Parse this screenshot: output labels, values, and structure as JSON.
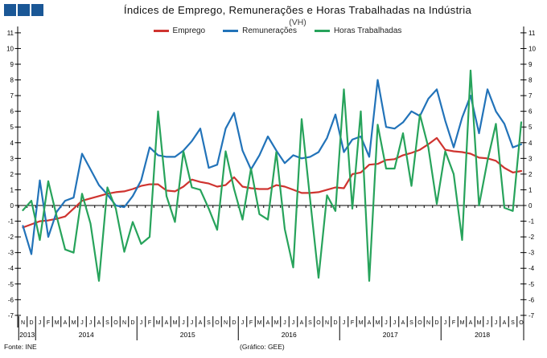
{
  "logo": {
    "square_count": 3,
    "color": "#1A5796"
  },
  "header": {
    "title": "Índices de Emprego,  Remunerações e Horas Trabalhadas  na  Indústria",
    "subtitle": "(VH)"
  },
  "footer": {
    "source": "Fonte:  INE",
    "credit": "(Gráfico:  GEE)"
  },
  "chart_data": {
    "type": "line",
    "title": "Índices de Emprego, Remunerações e Horas Trabalhadas na Indústria",
    "subtitle": "(VH)",
    "ylim": [
      -7,
      11
    ],
    "y_step": 1,
    "grid": false,
    "legend_position": "top-center",
    "dual_y_axis": true,
    "x_month_labels": [
      "N",
      "D",
      "J",
      "F",
      "M",
      "A",
      "M",
      "J",
      "J",
      "A",
      "S",
      "O",
      "N",
      "D",
      "J",
      "F",
      "M",
      "A",
      "M",
      "J",
      "J",
      "A",
      "S",
      "O",
      "N",
      "D",
      "J",
      "F",
      "M",
      "A",
      "M",
      "J",
      "J",
      "A",
      "S",
      "O",
      "N",
      "D",
      "J",
      "F",
      "M",
      "A",
      "M",
      "J",
      "J",
      "A",
      "S",
      "O",
      "N",
      "D",
      "J",
      "F",
      "M",
      "A",
      "M",
      "J",
      "J",
      "A",
      "S",
      "O"
    ],
    "years": [
      {
        "label": "2013",
        "from": 0,
        "to": 1
      },
      {
        "label": "2014",
        "from": 2,
        "to": 13
      },
      {
        "label": "2015",
        "from": 14,
        "to": 25
      },
      {
        "label": "2016",
        "from": 26,
        "to": 37
      },
      {
        "label": "2017",
        "from": 38,
        "to": 49
      },
      {
        "label": "2018",
        "from": 50,
        "to": 59
      }
    ],
    "series": [
      {
        "name": "Emprego",
        "color": "#CF3430",
        "values": [
          -1.4,
          -1.2,
          -1.0,
          -0.95,
          -0.85,
          -0.7,
          -0.2,
          0.3,
          0.45,
          0.6,
          0.75,
          0.85,
          0.9,
          1.05,
          1.25,
          1.35,
          1.35,
          0.95,
          0.9,
          1.2,
          1.65,
          1.5,
          1.4,
          1.2,
          1.3,
          1.8,
          1.2,
          1.1,
          1.05,
          1.05,
          1.3,
          1.2,
          1.0,
          0.8,
          0.8,
          0.85,
          1.0,
          1.15,
          1.1,
          2.0,
          2.1,
          2.6,
          2.65,
          2.9,
          2.95,
          3.2,
          3.35,
          3.55,
          3.9,
          4.3,
          3.55,
          3.45,
          3.4,
          3.3,
          3.05,
          3.0,
          2.85,
          2.4,
          2.1,
          2.2
        ]
      },
      {
        "name": "Remunerações",
        "color": "#2273B9",
        "values": [
          -1.3,
          -3.1,
          1.6,
          -2.0,
          -0.4,
          0.3,
          0.5,
          3.3,
          2.3,
          1.3,
          0.7,
          0.0,
          -0.1,
          0.6,
          1.6,
          3.7,
          3.2,
          3.1,
          3.1,
          3.5,
          4.1,
          4.9,
          2.4,
          2.6,
          4.9,
          5.9,
          3.5,
          2.3,
          3.2,
          4.4,
          3.5,
          2.7,
          3.2,
          3.0,
          3.1,
          3.4,
          4.3,
          5.8,
          3.4,
          4.2,
          4.4,
          3.1,
          8.0,
          5.0,
          4.9,
          5.3,
          6.0,
          5.7,
          6.8,
          7.4,
          5.4,
          3.7,
          5.6,
          7.0,
          4.6,
          7.4,
          6.0,
          5.2,
          3.7,
          3.9
        ]
      },
      {
        "name": "Horas Trabalhadas",
        "color": "#27A35B",
        "values": [
          -0.3,
          0.3,
          -2.2,
          1.55,
          -0.7,
          -2.8,
          -3.0,
          0.75,
          -1.15,
          -4.8,
          1.15,
          -0.2,
          -2.95,
          -1.05,
          -2.45,
          -2.0,
          6.0,
          0.6,
          -1.05,
          3.45,
          1.15,
          1.0,
          -0.2,
          -1.55,
          3.45,
          1.05,
          -0.9,
          2.35,
          -0.55,
          -0.9,
          3.4,
          -1.5,
          -3.95,
          5.5,
          0.4,
          -4.6,
          0.65,
          -0.35,
          7.4,
          -0.2,
          6.0,
          -4.8,
          5.15,
          2.35,
          2.35,
          4.6,
          1.25,
          5.8,
          3.7,
          0.1,
          3.45,
          2.0,
          -2.2,
          8.6,
          0.0,
          2.85,
          5.2,
          -0.15,
          -0.35,
          5.3
        ]
      }
    ]
  }
}
